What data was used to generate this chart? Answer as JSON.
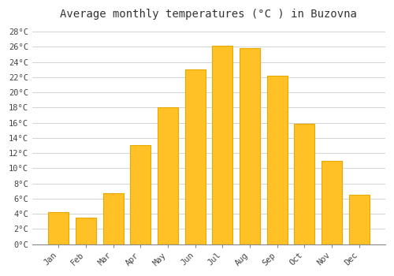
{
  "title": "Average monthly temperatures (°C ) in Buzovna",
  "months": [
    "Jan",
    "Feb",
    "Mar",
    "Apr",
    "May",
    "Jun",
    "Jul",
    "Aug",
    "Sep",
    "Oct",
    "Nov",
    "Dec"
  ],
  "values": [
    4.2,
    3.5,
    6.7,
    13.0,
    18.0,
    23.0,
    26.1,
    25.8,
    22.2,
    15.8,
    11.0,
    6.5
  ],
  "bar_color": "#FFC125",
  "bar_edge_color": "#E8A800",
  "ylim": [
    0,
    29
  ],
  "ytick_step": 2,
  "background_color": "#ffffff",
  "grid_color": "#cccccc",
  "title_fontsize": 10,
  "tick_fontsize": 7.5,
  "bar_width": 0.75
}
